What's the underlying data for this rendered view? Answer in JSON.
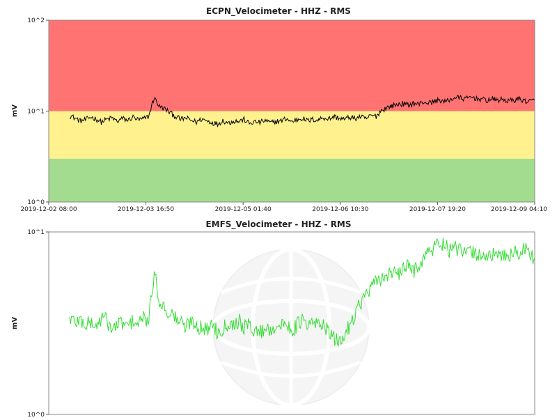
{
  "chart_data": [
    {
      "type": "line",
      "title": "ECPN_Velocimeter - HHZ - RMS",
      "ylabel": "mV",
      "xlabel": "",
      "yscale": "log",
      "ylim": [
        1,
        100
      ],
      "ytick_labels": [
        "10^2",
        "10^1",
        "10^0"
      ],
      "xtick_labels": [
        "2019-12-02 08:00",
        "2019-12-03 16:50",
        "2019-12-05 01:40",
        "2019-12-06 10:30",
        "2019-12-07 19:20",
        "2019-12-09 04:10"
      ],
      "xlim": [
        "2019-12-02 08:00",
        "2019-12-09 04:10"
      ],
      "bands": [
        {
          "from": 1,
          "to": 3,
          "color": "#a3dc8f"
        },
        {
          "from": 3,
          "to": 10,
          "color": "#fff18e"
        },
        {
          "from": 10,
          "to": 100,
          "color": "#ff7472"
        }
      ],
      "line_color": "#000000",
      "series": [
        {
          "name": "",
          "x_start": "2019-12-02 08:00",
          "x_end": "2019-12-09 04:10",
          "values_sampled_every_2h": [
            9.0,
            8.4,
            7.8,
            8.0,
            8.6,
            8.2,
            7.6,
            8.1,
            8.4,
            7.7,
            8.3,
            7.9,
            8.6,
            8.0,
            8.2,
            8.8,
            14.0,
            11.2,
            10.6,
            9.6,
            8.8,
            8.1,
            8.4,
            7.9,
            7.6,
            8.2,
            7.8,
            7.5,
            7.2,
            7.9,
            7.4,
            7.8,
            7.7,
            8.1,
            7.3,
            7.6,
            7.5,
            7.9,
            7.4,
            7.7,
            7.8,
            8.3,
            7.6,
            8.1,
            8.4,
            7.8,
            8.1,
            8.0,
            8.5,
            8.2,
            8.7,
            8.4,
            8.1,
            8.6,
            8.3,
            8.7,
            8.2,
            8.9,
            8.8,
            10.2,
            10.9,
            11.4,
            11.8,
            12.1,
            11.6,
            12.2,
            11.9,
            12.6,
            12.3,
            12.8,
            13.3,
            12.6,
            13.4,
            14.1,
            14.0,
            13.6,
            14.3,
            13.8,
            13.5,
            13.1,
            13.6,
            13.2,
            13.4,
            12.9,
            13.2,
            13.6,
            13.0,
            12.8,
            13.1
          ]
        }
      ]
    },
    {
      "type": "line",
      "title": "EMFS_Velocimeter - HHZ - RMS",
      "ylabel": "mV",
      "xlabel": "",
      "yscale": "log",
      "ylim": [
        1,
        10
      ],
      "ytick_labels": [
        "10^1",
        "10^0"
      ],
      "xlim": [
        "2019-12-02 08:00",
        "2019-12-09 04:10"
      ],
      "line_color": "#33dd33",
      "series": [
        {
          "name": "",
          "x_start": "2019-12-02 08:00",
          "x_end": "2019-12-09 04:10",
          "values_sampled_every_2h": [
            3.4,
            3.2,
            3.3,
            3.1,
            3.2,
            3.0,
            3.4,
            3.3,
            2.9,
            3.1,
            3.2,
            3.0,
            3.3,
            3.1,
            3.4,
            3.2,
            5.9,
            4.2,
            3.8,
            3.6,
            3.4,
            3.2,
            3.0,
            3.3,
            3.1,
            3.0,
            2.9,
            3.2,
            2.8,
            3.0,
            3.2,
            3.1,
            3.3,
            3.0,
            3.1,
            2.9,
            2.8,
            3.0,
            2.9,
            3.1,
            3.0,
            3.2,
            2.9,
            3.1,
            3.3,
            3.0,
            3.2,
            3.1,
            3.2,
            2.8,
            2.6,
            2.5,
            2.7,
            3.1,
            3.6,
            4.1,
            4.5,
            4.9,
            5.3,
            5.6,
            5.8,
            6.1,
            5.7,
            6.3,
            6.5,
            6.1,
            6.7,
            7.2,
            7.8,
            8.2,
            8.9,
            8.4,
            7.9,
            8.2,
            7.8,
            7.6,
            7.9,
            7.4,
            7.7,
            7.3,
            7.5,
            7.2,
            7.6,
            7.4,
            7.8,
            7.5,
            8.3,
            7.6,
            7.2
          ]
        }
      ]
    }
  ]
}
